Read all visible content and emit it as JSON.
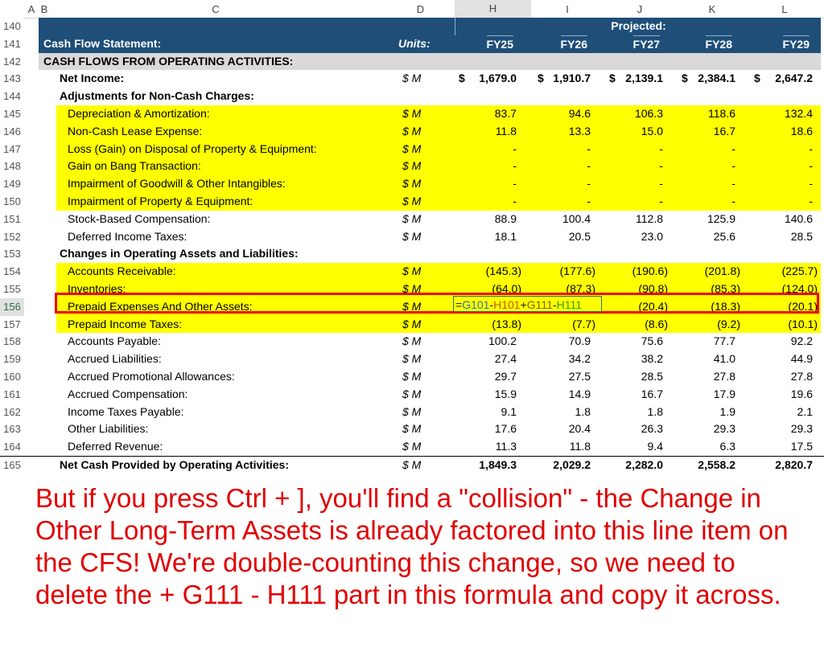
{
  "columns": [
    "A",
    "B",
    "C",
    "D",
    "H",
    "I",
    "J",
    "K",
    "L"
  ],
  "header": {
    "projected": "Projected:",
    "title": "Cash Flow Statement:",
    "units": "Units:",
    "years": [
      "FY25",
      "FY26",
      "FY27",
      "FY28",
      "FY29"
    ]
  },
  "section": "CASH FLOWS FROM OPERATING ACTIVITIES:",
  "rows": [
    {
      "n": "143",
      "label": "Net Income:",
      "unit": "$ M",
      "vals": [
        "1,679.0",
        "1,910.7",
        "2,139.1",
        "2,384.1",
        "2,647.2"
      ],
      "dollar": true,
      "style": "bold",
      "indent": 1
    },
    {
      "n": "144",
      "label": "Adjustments for Non-Cash Charges:",
      "unit": "",
      "vals": [
        "",
        "",
        "",
        "",
        ""
      ],
      "style": "bold",
      "indent": 1
    },
    {
      "n": "145",
      "label": "Depreciation & Amortization:",
      "unit": "$ M",
      "vals": [
        "83.7",
        "94.6",
        "106.3",
        "118.6",
        "132.4"
      ],
      "style": "yellow",
      "indent": 2
    },
    {
      "n": "146",
      "label": "Non-Cash Lease Expense:",
      "unit": "$ M",
      "vals": [
        "11.8",
        "13.3",
        "15.0",
        "16.7",
        "18.6"
      ],
      "style": "yellow",
      "indent": 2
    },
    {
      "n": "147",
      "label": "Loss (Gain) on Disposal of Property & Equipment:",
      "unit": "$ M",
      "vals": [
        "-",
        "-",
        "-",
        "-",
        "-"
      ],
      "style": "yellow",
      "indent": 2
    },
    {
      "n": "148",
      "label": "Gain on Bang Transaction:",
      "unit": "$ M",
      "vals": [
        "-",
        "-",
        "-",
        "-",
        "-"
      ],
      "style": "yellow",
      "indent": 2
    },
    {
      "n": "149",
      "label": "Impairment of Goodwill & Other Intangibles:",
      "unit": "$ M",
      "vals": [
        "-",
        "-",
        "-",
        "-",
        "-"
      ],
      "style": "yellow",
      "indent": 2
    },
    {
      "n": "150",
      "label": "Impairment of Property & Equipment:",
      "unit": "$ M",
      "vals": [
        "-",
        "-",
        "-",
        "-",
        "-"
      ],
      "style": "yellow",
      "indent": 2
    },
    {
      "n": "151",
      "label": "Stock-Based Compensation:",
      "unit": "$ M",
      "vals": [
        "88.9",
        "100.4",
        "112.8",
        "125.9",
        "140.6"
      ],
      "style": "",
      "indent": 2
    },
    {
      "n": "152",
      "label": "Deferred Income Taxes:",
      "unit": "$ M",
      "vals": [
        "18.1",
        "20.5",
        "23.0",
        "25.6",
        "28.5"
      ],
      "style": "",
      "indent": 2
    },
    {
      "n": "153",
      "label": "Changes in Operating Assets and Liabilities:",
      "unit": "",
      "vals": [
        "",
        "",
        "",
        "",
        ""
      ],
      "style": "bold",
      "indent": 1
    },
    {
      "n": "154",
      "label": "Accounts Receivable:",
      "unit": "$ M",
      "vals": [
        "(145.3)",
        "(177.6)",
        "(190.6)",
        "(201.8)",
        "(225.7)"
      ],
      "style": "yellow",
      "indent": 2
    },
    {
      "n": "155",
      "label": "Inventories:",
      "unit": "$ M",
      "vals": [
        "(64.0)",
        "(87.3)",
        "(90.8)",
        "(85.3)",
        "(124.0)"
      ],
      "style": "yellow",
      "indent": 2
    },
    {
      "n": "156",
      "label": "Prepaid Expenses And Other Assets:",
      "unit": "$ M",
      "vals": [
        "",
        "",
        "(20.4)",
        "(18.3)",
        "(20.1)"
      ],
      "style": "yellow",
      "indent": 2
    },
    {
      "n": "157",
      "label": "Prepaid Income Taxes:",
      "unit": "$ M",
      "vals": [
        "(13.8)",
        "(7.7)",
        "(8.6)",
        "(9.2)",
        "(10.1)"
      ],
      "style": "yellow",
      "indent": 2
    },
    {
      "n": "158",
      "label": "Accounts Payable:",
      "unit": "$ M",
      "vals": [
        "100.2",
        "70.9",
        "75.6",
        "77.7",
        "92.2"
      ],
      "style": "",
      "indent": 2
    },
    {
      "n": "159",
      "label": "Accrued Liabilities:",
      "unit": "$ M",
      "vals": [
        "27.4",
        "34.2",
        "38.2",
        "41.0",
        "44.9"
      ],
      "style": "",
      "indent": 2
    },
    {
      "n": "160",
      "label": "Accrued Promotional Allowances:",
      "unit": "$ M",
      "vals": [
        "29.7",
        "27.5",
        "28.5",
        "27.8",
        "27.8"
      ],
      "style": "",
      "indent": 2
    },
    {
      "n": "161",
      "label": "Accrued Compensation:",
      "unit": "$ M",
      "vals": [
        "15.9",
        "14.9",
        "16.7",
        "17.9",
        "19.6"
      ],
      "style": "",
      "indent": 2
    },
    {
      "n": "162",
      "label": "Income Taxes Payable:",
      "unit": "$ M",
      "vals": [
        "9.1",
        "1.8",
        "1.8",
        "1.9",
        "2.1"
      ],
      "style": "",
      "indent": 2
    },
    {
      "n": "163",
      "label": "Other Liabilities:",
      "unit": "$ M",
      "vals": [
        "17.6",
        "20.4",
        "26.3",
        "29.3",
        "29.3"
      ],
      "style": "",
      "indent": 2
    },
    {
      "n": "164",
      "label": "Deferred Revenue:",
      "unit": "$ M",
      "vals": [
        "11.3",
        "11.8",
        "9.4",
        "6.3",
        "17.5"
      ],
      "style": "",
      "indent": 2
    },
    {
      "n": "165",
      "label": "Net Cash Provided by Operating Activities:",
      "unit": "$ M",
      "vals": [
        "1,849.3",
        "2,029.2",
        "2,282.0",
        "2,558.2",
        "2,820.7"
      ],
      "style": "total",
      "indent": 1
    }
  ],
  "formula": {
    "parts": [
      {
        "t": "=",
        "c": "#222222"
      },
      {
        "t": "G101",
        "c": "#2e75b6"
      },
      {
        "t": "-",
        "c": "#222222"
      },
      {
        "t": "H101",
        "c": "#c55a11"
      },
      {
        "t": "+",
        "c": "#222222"
      },
      {
        "t": "G111",
        "c": "#7f6000"
      },
      {
        "t": "-",
        "c": "#222222"
      },
      {
        "t": "H111",
        "c": "#38a000"
      }
    ]
  },
  "annotation": "But if you press Ctrl + ], you'll find a \"collision\" - the Change in Other Long-Term Assets is already factored into this line item on the CFS! We're double-counting this change, so we need to delete the + G111 - H111 part in this formula and copy it across.",
  "colors": {
    "navy": "#1f4e79",
    "highlight": "#ffff00",
    "annotation": "#e00000"
  }
}
